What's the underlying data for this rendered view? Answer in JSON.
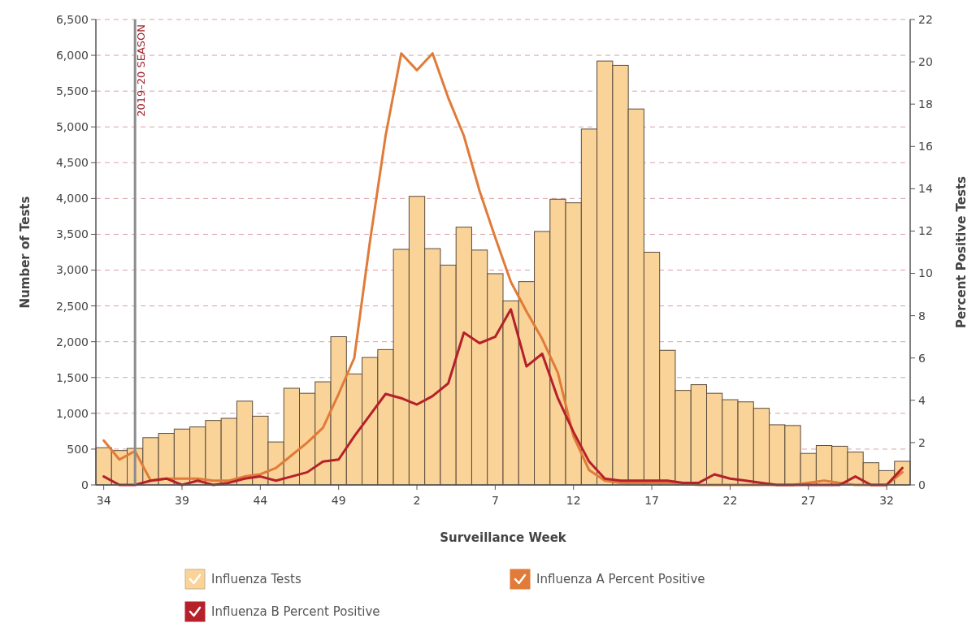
{
  "chart_data": {
    "type": "bar",
    "xlabel": "Surveillance Week",
    "ylabel": "Number of Tests",
    "y2label": "Percent Positive Tests",
    "categories": [
      "34",
      null,
      null,
      null,
      null,
      "39",
      null,
      null,
      null,
      null,
      "44",
      null,
      null,
      null,
      null,
      "49",
      null,
      null,
      null,
      null,
      "2",
      null,
      null,
      null,
      null,
      "7",
      null,
      null,
      null,
      null,
      "12",
      null,
      null,
      null,
      null,
      "17",
      null,
      null,
      null,
      null,
      "22",
      null,
      null,
      null,
      null,
      "27",
      null,
      null,
      null,
      null,
      "32",
      null
    ],
    "ylim": [
      0,
      6500
    ],
    "yticks": [
      {
        "value": 0,
        "label": "0"
      },
      {
        "value": 500,
        "label": "500"
      },
      {
        "value": 1000,
        "label": "1,000"
      },
      {
        "value": 1500,
        "label": "1,500"
      },
      {
        "value": 2000,
        "label": "2,000"
      },
      {
        "value": 2500,
        "label": "2,500"
      },
      {
        "value": 3000,
        "label": "3,000"
      },
      {
        "value": 3500,
        "label": "3,500"
      },
      {
        "value": 4000,
        "label": "4,000"
      },
      {
        "value": 4500,
        "label": "4,500"
      },
      {
        "value": 5000,
        "label": "5,000"
      },
      {
        "value": 5500,
        "label": "5,500"
      },
      {
        "value": 6000,
        "label": "6,000"
      },
      {
        "value": 6500,
        "label": "6,500"
      }
    ],
    "y2lim": [
      0,
      22
    ],
    "y2ticks": [
      0,
      2,
      4,
      6,
      8,
      10,
      12,
      14,
      16,
      18,
      20,
      22
    ],
    "grid": "y",
    "legend": "bottom",
    "annotations": [
      "2019–20 SEASON"
    ],
    "series": [
      {
        "name": "Influenza Tests",
        "color": "#fad398",
        "values": [
          520,
          480,
          510,
          660,
          720,
          780,
          810,
          900,
          930,
          1170,
          960,
          600,
          1350,
          1280,
          1440,
          2070,
          1550,
          1780,
          1890,
          3290,
          4030,
          3300,
          3070,
          3600,
          3280,
          2950,
          2570,
          2840,
          3540,
          3990,
          3940,
          4970,
          5920,
          5860,
          5250,
          3250,
          1880,
          1320,
          1400,
          1280,
          1190,
          1160,
          1070,
          840,
          830,
          440,
          550,
          540,
          460,
          310,
          200,
          330
        ]
      },
      {
        "name": "Influenza A Percent Positive",
        "type": "line",
        "axis": "y2",
        "color": "#e07b39",
        "values": [
          2.1,
          1.2,
          1.6,
          0.2,
          0.3,
          0.3,
          0.3,
          0.2,
          0.2,
          0.4,
          0.5,
          0.8,
          1.4,
          2.0,
          2.7,
          4.3,
          6.0,
          11.5,
          16.5,
          20.4,
          19.6,
          20.4,
          18.3,
          16.5,
          13.9,
          11.7,
          9.6,
          8.2,
          6.9,
          5.3,
          2.3,
          0.7,
          0.2,
          0.1,
          0.1,
          0.1,
          0.1,
          0.05,
          0,
          0,
          0,
          0,
          0,
          0,
          0,
          0.1,
          0.2,
          0.1,
          0,
          0,
          0,
          0.6
        ]
      },
      {
        "name": "Influenza B Percent Positive",
        "type": "line",
        "axis": "y2",
        "color": "#b5202a",
        "values": [
          0.4,
          0,
          0,
          0.2,
          0.3,
          0,
          0.2,
          0,
          0.1,
          0.3,
          0.4,
          0.2,
          0.4,
          0.6,
          1.1,
          1.2,
          2.3,
          3.3,
          4.3,
          4.1,
          3.8,
          4.2,
          4.8,
          7.2,
          6.7,
          7.0,
          8.3,
          5.6,
          6.2,
          4.1,
          2.5,
          1.1,
          0.3,
          0.2,
          0.2,
          0.2,
          0.2,
          0.1,
          0.1,
          0.5,
          0.3,
          0.2,
          0.1,
          0,
          0,
          0,
          0,
          0,
          0.4,
          0,
          0,
          0.8
        ]
      }
    ]
  }
}
